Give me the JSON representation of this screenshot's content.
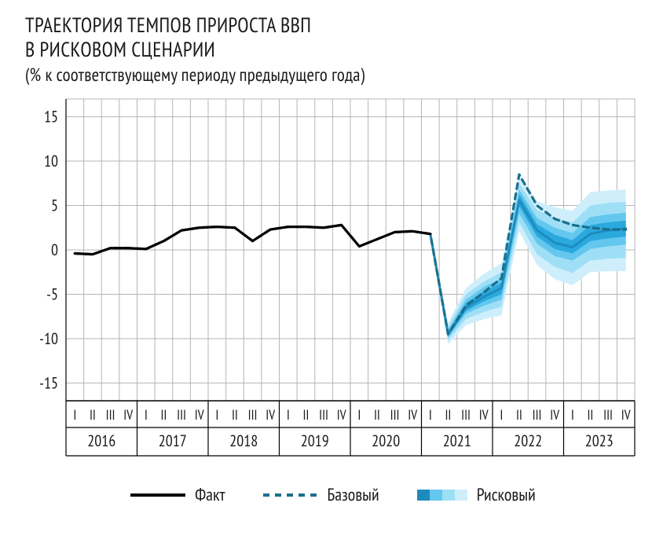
{
  "title_line1": "ТРАЕКТОРИЯ ТЕМПОВ ПРИРОСТА ВВП",
  "title_line2": "В РИСКОВОМ СЦЕНАРИИ",
  "subtitle": "(% к соответствующему периоду предыдущего года)",
  "chart": {
    "type": "line-fan",
    "background_color": "#ffffff",
    "grid_color": "#b5b5b5",
    "axis_color": "#000000",
    "text_color": "#1a1a1a",
    "ylim": [
      -17,
      17
    ],
    "yticks": [
      -15,
      -10,
      -5,
      0,
      5,
      10,
      15
    ],
    "ytick_fontsize": 20,
    "years": [
      "2016",
      "2017",
      "2018",
      "2019",
      "2020",
      "2021",
      "2022",
      "2023"
    ],
    "quarters": [
      "I",
      "II",
      "III",
      "IV"
    ],
    "year_fontsize": 20,
    "quarter_fontsize": 17,
    "n_points": 32,
    "series_fact": {
      "color": "#000000",
      "width": 3.2,
      "dash": "none",
      "values": [
        -0.4,
        -0.5,
        0.2,
        0.2,
        0.1,
        1.0,
        2.2,
        2.5,
        2.6,
        2.5,
        1.0,
        2.3,
        2.6,
        2.6,
        2.5,
        2.8,
        0.4,
        1.2,
        2.0,
        2.1,
        1.8,
        null,
        null,
        null,
        null,
        null,
        null,
        null,
        null,
        null,
        null,
        null
      ]
    },
    "series_base": {
      "color": "#1b6f8c",
      "width": 3.2,
      "dash": "7 6",
      "values": [
        -0.4,
        -0.5,
        0.2,
        0.2,
        0.1,
        1.0,
        2.2,
        2.5,
        2.6,
        2.5,
        1.0,
        2.3,
        2.6,
        2.6,
        2.5,
        2.8,
        0.4,
        1.2,
        2.0,
        2.1,
        1.8,
        -9.5,
        -6.3,
        -4.8,
        -3.2,
        8.5,
        5.0,
        3.5,
        2.8,
        2.5,
        2.3,
        2.3
      ]
    },
    "series_risk_median": {
      "color": "#1e8bbf",
      "width": 3.0,
      "dash": "none",
      "start_index": 20,
      "values": [
        1.8,
        -9.5,
        -6.5,
        -5.3,
        -4.3,
        5.6,
        2.2,
        0.8,
        0.3,
        1.8,
        2.2,
        2.4
      ]
    },
    "fan_start_index": 20,
    "fan_bands": [
      {
        "color": "#cfeefc",
        "upper": [
          1.8,
          -8.2,
          -4.3,
          -2.7,
          -1.5,
          8.4,
          5.5,
          4.8,
          4.4,
          6.5,
          6.7,
          6.8
        ],
        "lower": [
          1.8,
          -10.6,
          -8.5,
          -7.8,
          -7.4,
          2.1,
          -1.7,
          -3.3,
          -4.0,
          -2.5,
          -2.4,
          -2.4
        ]
      },
      {
        "color": "#9edff6",
        "upper": [
          1.8,
          -8.6,
          -5.0,
          -3.6,
          -2.5,
          7.5,
          4.5,
          3.6,
          3.1,
          5.0,
          5.3,
          5.4
        ],
        "lower": [
          1.8,
          -10.2,
          -7.8,
          -7.0,
          -6.4,
          3.1,
          -0.5,
          -1.9,
          -2.6,
          -1.2,
          -1.0,
          -0.9
        ]
      },
      {
        "color": "#63c7ee",
        "upper": [
          1.8,
          -9.0,
          -5.6,
          -4.2,
          -3.2,
          6.8,
          3.6,
          2.5,
          1.9,
          3.7,
          4.0,
          4.2
        ],
        "lower": [
          1.8,
          -9.9,
          -7.2,
          -6.3,
          -5.6,
          4.1,
          0.7,
          -0.7,
          -1.2,
          0.1,
          0.4,
          0.6
        ]
      },
      {
        "color": "#2aa9dd",
        "upper": [
          1.8,
          -9.2,
          -6.0,
          -4.7,
          -3.7,
          6.3,
          2.9,
          1.7,
          1.1,
          2.8,
          3.1,
          3.3
        ],
        "lower": [
          1.8,
          -9.7,
          -6.9,
          -5.8,
          -5.0,
          4.9,
          1.5,
          0.1,
          -0.4,
          1.0,
          1.3,
          1.5
        ]
      }
    ],
    "legend": {
      "fact": "Факт",
      "base": "Базовый",
      "risk": "Рисковый",
      "fontsize": 22,
      "fact_line_color": "#000000",
      "base_line_color": "#1b6f8c",
      "fan_swatch_colors": [
        "#1e8bbf",
        "#63c7ee",
        "#9edff6",
        "#cfeefc"
      ]
    }
  }
}
